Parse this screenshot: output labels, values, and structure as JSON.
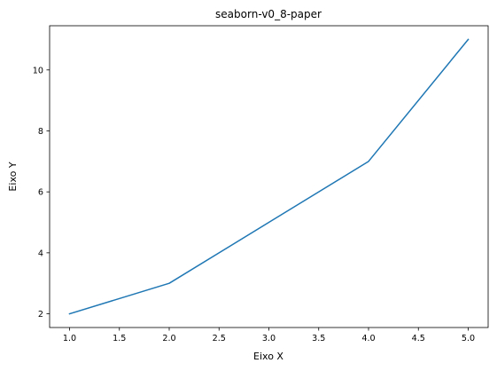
{
  "chart_data": {
    "type": "line",
    "title": "seaborn-v0_8-paper",
    "xlabel": "Eixo X",
    "ylabel": "Eixo Y",
    "x": [
      1,
      2,
      3,
      4,
      5
    ],
    "series": [
      {
        "values": [
          2,
          3,
          5,
          7,
          11
        ],
        "color": "#1f77b4"
      }
    ],
    "xlim": [
      0.8,
      5.2
    ],
    "ylim": [
      1.55,
      11.45
    ],
    "xticks": [
      "1.0",
      "1.5",
      "2.0",
      "2.5",
      "3.0",
      "3.5",
      "4.0",
      "4.5",
      "5.0"
    ],
    "yticks": [
      "2",
      "4",
      "6",
      "8",
      "10"
    ],
    "grid": false,
    "legend": "none"
  }
}
